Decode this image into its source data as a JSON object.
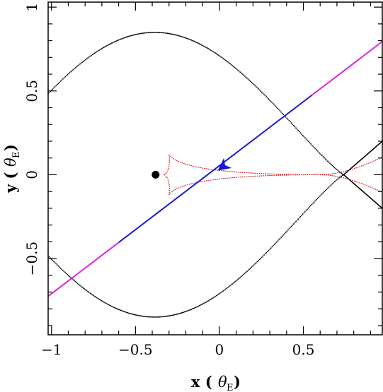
{
  "chart_data": {
    "type": "scatter",
    "xlim": [
      -1.02,
      0.97
    ],
    "ylim": [
      -0.955,
      1.03
    ],
    "xticks": [
      {
        "value": -1,
        "label": "−1"
      },
      {
        "value": -0.5,
        "label": "−0.5"
      },
      {
        "value": 0,
        "label": "0"
      },
      {
        "value": 0.5,
        "label": "0.5"
      }
    ],
    "yticks": [
      {
        "value": 1,
        "label": "1"
      },
      {
        "value": 0.5,
        "label": "0.5"
      },
      {
        "value": 0,
        "label": "0"
      },
      {
        "value": -0.5,
        "label": "−0.5"
      }
    ],
    "xminor_step": 0.1,
    "yminor_step": 0.1,
    "xlabel": {
      "main": "x (",
      "theta": "θ",
      "sub": "E",
      "close": ")"
    },
    "ylabel": {
      "main": "y (",
      "theta": "θ",
      "sub": "E",
      "close": ")"
    },
    "grid": false,
    "series": [
      {
        "kind": "critical-curve",
        "style": "dotted",
        "color": "#000000",
        "left_lobe": {
          "center": [
            -0.42,
            0.0
          ],
          "rx": 0.6,
          "ry": 0.875,
          "join_x": 0.74
        },
        "right_arms_to": [
          [
            0.97,
            0.2
          ],
          [
            0.97,
            -0.2
          ]
        ]
      },
      {
        "kind": "caustic",
        "style": "dotted-dense",
        "color": "#cc1111",
        "cusp_left": [
          -0.33,
          0.0
        ],
        "cusp_top": [
          -0.3,
          0.12
        ],
        "cusp_bottom": [
          -0.3,
          -0.12
        ],
        "right_cusp": [
          0.6,
          0.0
        ],
        "right_arms_to": [
          [
            0.97,
            0.105
          ],
          [
            0.97,
            -0.105
          ]
        ]
      },
      {
        "kind": "source-trajectory",
        "color_inner": "#1a1acc",
        "color_outer": "#dd22dd",
        "start": [
          -1.02,
          -0.725
        ],
        "end": [
          0.97,
          0.795
        ],
        "inner_range_x": [
          -0.6,
          0.55
        ]
      }
    ],
    "lens_point": {
      "x": -0.38,
      "y": 0.0,
      "color": "#000000"
    },
    "arrow": {
      "x": 0.03,
      "y": 0.055,
      "direction": "down-left",
      "color": "#1a1acc"
    }
  }
}
